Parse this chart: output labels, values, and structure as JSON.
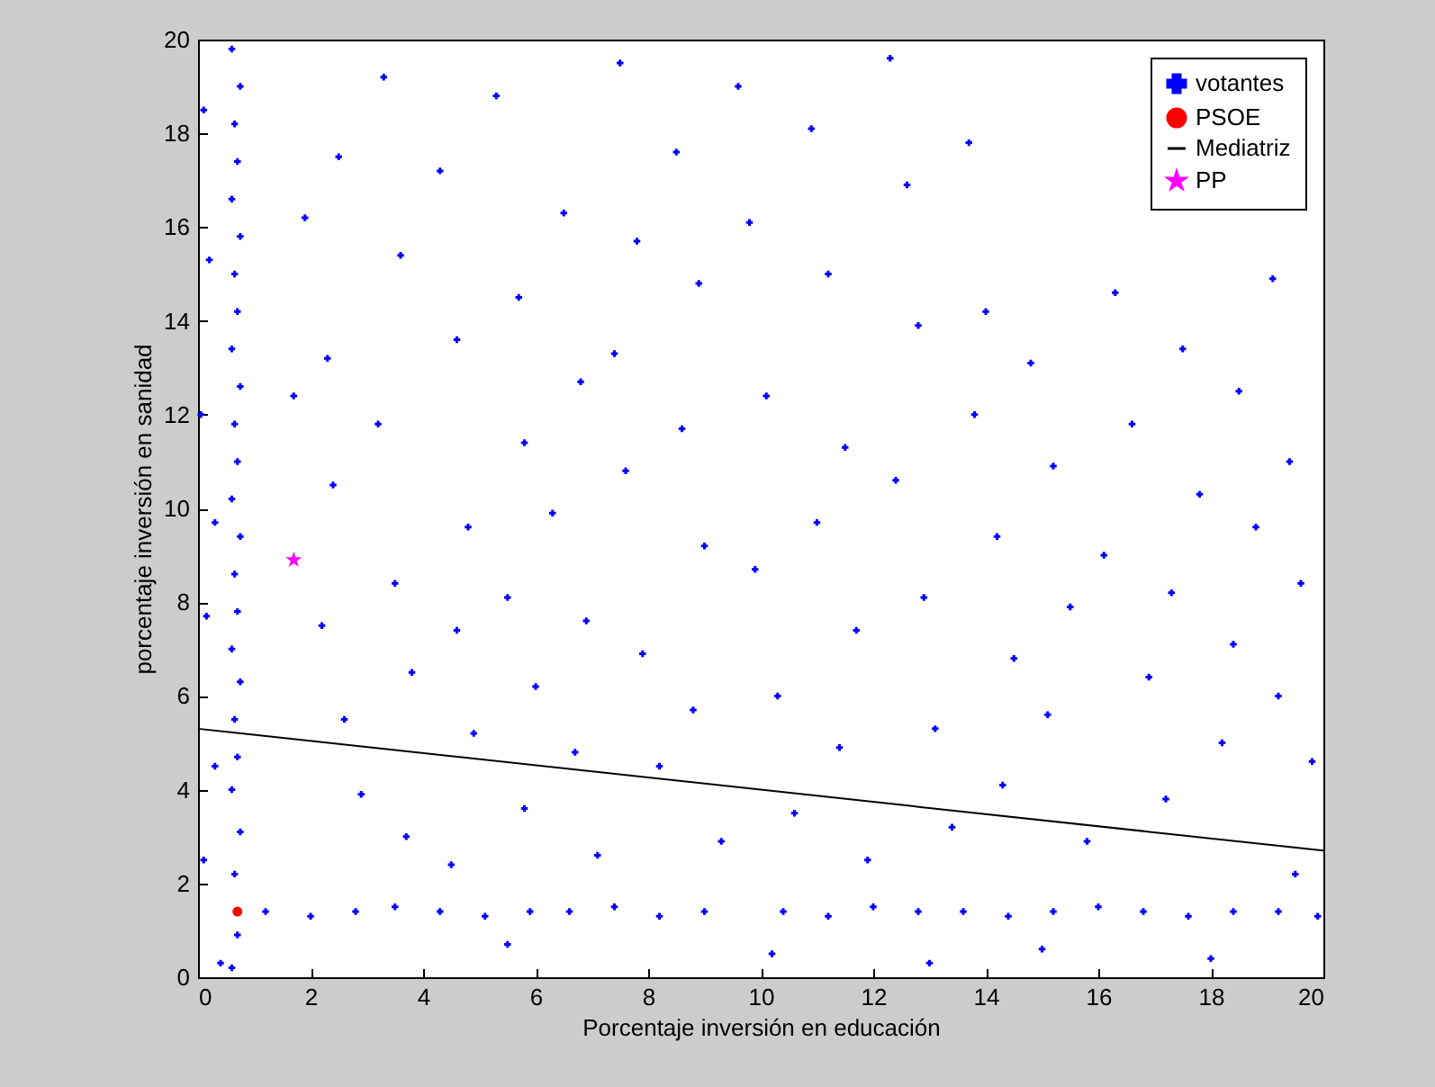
{
  "chart_data": {
    "type": "scatter",
    "xlabel": "Porcentaje inversión en educación",
    "ylabel": "porcentaje inversión en sanidad",
    "xlim": [
      0,
      20
    ],
    "ylim": [
      0,
      20
    ],
    "xticks": [
      0,
      2,
      4,
      6,
      8,
      10,
      12,
      14,
      16,
      18,
      20
    ],
    "yticks": [
      0,
      2,
      4,
      6,
      8,
      10,
      12,
      14,
      16,
      18,
      20
    ],
    "legend": "top right",
    "series": [
      {
        "name": "votantes",
        "marker": "cross",
        "color": "#0000ff",
        "x": [
          0.6,
          0.7,
          0.65,
          0.75,
          0.6,
          0.7,
          0.65,
          0.75,
          0.6,
          0.7,
          0.65,
          0.75,
          0.6,
          0.7,
          0.65,
          0.75,
          0.6,
          0.7,
          0.65,
          0.75,
          0.6,
          0.7,
          0.65,
          0.75,
          0.6,
          1.2,
          2.0,
          2.8,
          3.5,
          4.3,
          5.1,
          5.9,
          6.6,
          7.4,
          8.2,
          9.0,
          10.4,
          11.2,
          12.0,
          12.8,
          13.6,
          14.4,
          15.2,
          16.0,
          16.8,
          17.6,
          18.4,
          19.2,
          19.9,
          0.1,
          0.2,
          0.05,
          0.3,
          0.15,
          0.3,
          0.1,
          0.4,
          1.7,
          1.9,
          2.3,
          2.4,
          2.2,
          2.6,
          2.9,
          3.3,
          3.6,
          3.2,
          3.5,
          3.8,
          3.7,
          4.3,
          4.6,
          4.8,
          4.6,
          4.9,
          4.5,
          5.3,
          5.7,
          5.8,
          5.5,
          6.0,
          5.8,
          6.5,
          6.8,
          6.3,
          6.9,
          6.7,
          7.1,
          7.5,
          7.8,
          7.4,
          7.6,
          7.9,
          8.2,
          8.5,
          8.9,
          8.6,
          9.0,
          8.8,
          9.3,
          9.6,
          9.8,
          10.1,
          9.9,
          10.3,
          10.6,
          10.9,
          11.2,
          11.5,
          11.0,
          11.7,
          11.4,
          11.9,
          12.3,
          12.6,
          12.8,
          12.4,
          12.9,
          13.1,
          13.4,
          13.7,
          14.0,
          13.8,
          14.2,
          14.5,
          14.3,
          14.8,
          15.2,
          15.5,
          15.1,
          15.8,
          16.3,
          16.6,
          16.1,
          16.9,
          17.2,
          17.5,
          17.8,
          17.3,
          18.2,
          18.5,
          18.8,
          18.4,
          19.1,
          19.4,
          19.6,
          19.2,
          19.8,
          19.5,
          10.2,
          15.0,
          5.5,
          18.0,
          2.5,
          13.0
        ],
        "values": [
          0.2,
          0.9,
          2.2,
          3.1,
          4.0,
          4.7,
          5.5,
          6.3,
          7.0,
          7.8,
          8.6,
          9.4,
          10.2,
          11.0,
          11.8,
          12.6,
          13.4,
          14.2,
          15.0,
          15.8,
          16.6,
          17.4,
          18.2,
          19.0,
          19.8,
          1.4,
          1.3,
          1.4,
          1.5,
          1.4,
          1.3,
          1.4,
          1.4,
          1.5,
          1.3,
          1.4,
          1.4,
          1.3,
          1.5,
          1.4,
          1.4,
          1.3,
          1.4,
          1.5,
          1.4,
          1.3,
          1.4,
          1.4,
          1.3,
          18.5,
          15.3,
          12.0,
          9.7,
          7.7,
          4.5,
          2.5,
          0.3,
          12.4,
          16.2,
          13.2,
          10.5,
          7.5,
          5.5,
          3.9,
          19.2,
          15.4,
          11.8,
          8.4,
          6.5,
          3.0,
          17.2,
          13.6,
          9.6,
          7.4,
          5.2,
          2.4,
          18.8,
          14.5,
          11.4,
          8.1,
          6.2,
          3.6,
          16.3,
          12.7,
          9.9,
          7.6,
          4.8,
          2.6,
          19.5,
          15.7,
          13.3,
          10.8,
          6.9,
          4.5,
          17.6,
          14.8,
          11.7,
          9.2,
          5.7,
          2.9,
          19.0,
          16.1,
          12.4,
          8.7,
          6.0,
          3.5,
          18.1,
          15.0,
          11.3,
          9.7,
          7.4,
          4.9,
          2.5,
          19.6,
          16.9,
          13.9,
          10.6,
          8.1,
          5.3,
          3.2,
          17.8,
          14.2,
          12.0,
          9.4,
          6.8,
          4.1,
          13.1,
          10.9,
          7.9,
          5.6,
          2.9,
          14.6,
          11.8,
          9.0,
          6.4,
          3.8,
          13.4,
          10.3,
          8.2,
          5.0,
          12.5,
          9.6,
          7.1,
          14.9,
          11.0,
          8.4,
          6.0,
          4.6,
          2.2,
          0.5,
          0.6,
          0.7,
          0.4,
          17.5,
          0.3
        ]
      },
      {
        "name": "PSOE",
        "marker": "circle",
        "color": "#ff0000",
        "x": [
          0.7
        ],
        "values": [
          1.4
        ]
      },
      {
        "name": "Mediatriz",
        "type": "line",
        "color": "#000000",
        "x": [
          0,
          20
        ],
        "values": [
          5.3,
          2.7
        ]
      },
      {
        "name": "PP",
        "marker": "star",
        "color": "#ff00ff",
        "x": [
          1.7
        ],
        "values": [
          8.9
        ]
      }
    ]
  }
}
